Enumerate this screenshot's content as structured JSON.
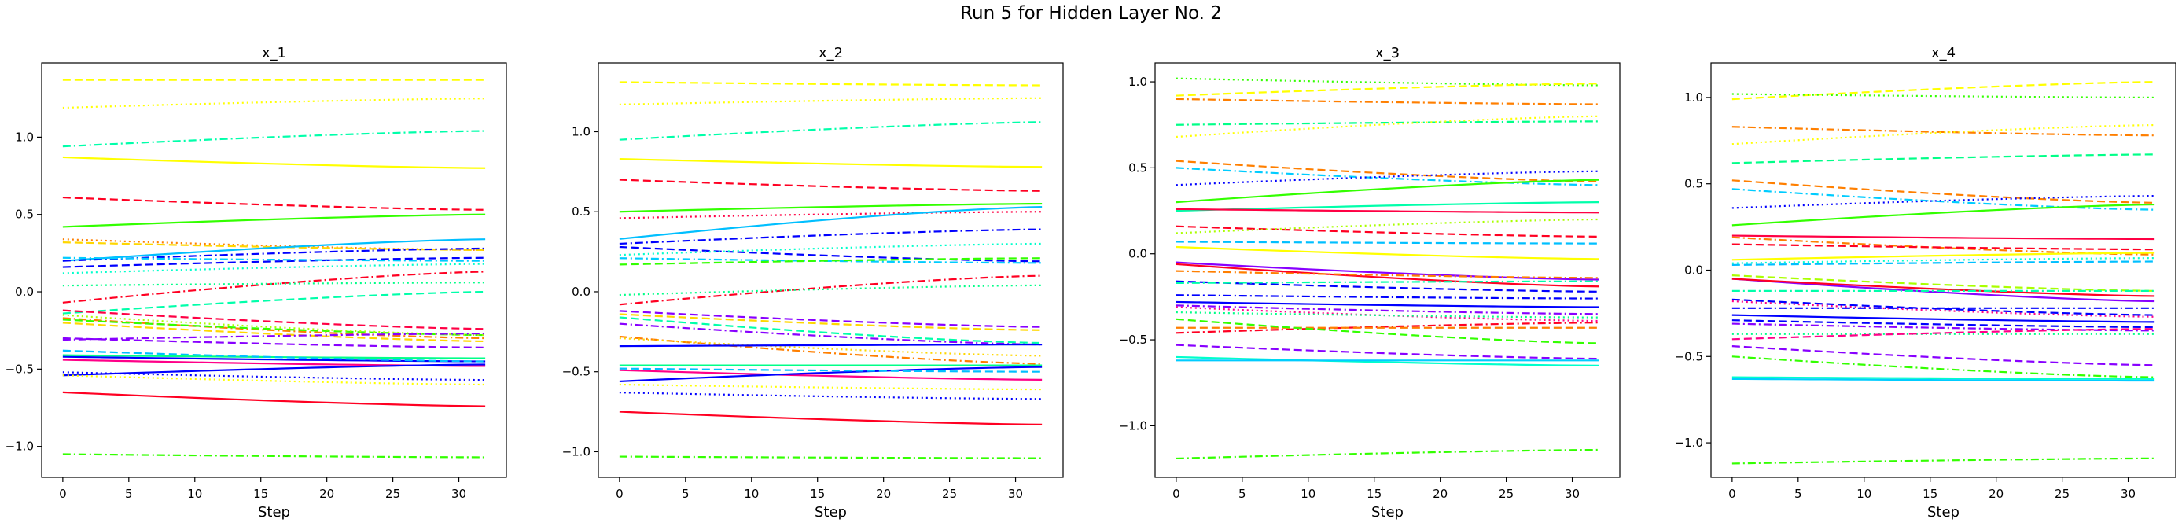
{
  "figure": {
    "title": "Run 5 for Hidden Layer No. 2"
  },
  "chart_data": [
    {
      "type": "line",
      "title": "x_1",
      "xlabel": "Step",
      "ylabel": "",
      "xlim": [
        -1.6,
        33.6
      ],
      "ylim": [
        -1.2,
        1.48
      ],
      "xticks": [
        0,
        5,
        10,
        15,
        20,
        25,
        30
      ],
      "yticks": [
        -1.0,
        -0.5,
        0.0,
        0.5,
        1.0
      ],
      "series": [
        {
          "color": "#ffff00",
          "style": "dashed",
          "start": 1.37,
          "end": 1.37
        },
        {
          "color": "#ffff00",
          "style": "dotted",
          "start": 1.19,
          "end": 1.25
        },
        {
          "color": "#00ffaa",
          "style": "dashdot",
          "start": 0.94,
          "end": 1.04
        },
        {
          "color": "#ffff00",
          "style": "solid",
          "start": 0.87,
          "end": 0.8
        },
        {
          "color": "#ff0022",
          "style": "dashed",
          "start": 0.61,
          "end": 0.53
        },
        {
          "color": "#33ff00",
          "style": "solid",
          "start": 0.42,
          "end": 0.5
        },
        {
          "color": "#ff7f00",
          "style": "dotted",
          "start": 0.34,
          "end": 0.27
        },
        {
          "color": "#ffd700",
          "style": "dashed",
          "start": 0.32,
          "end": 0.27
        },
        {
          "color": "#00bfff",
          "style": "solid",
          "start": 0.2,
          "end": 0.34
        },
        {
          "color": "#0000ff",
          "style": "dashdot",
          "start": 0.2,
          "end": 0.28
        },
        {
          "color": "#0000ff",
          "style": "dashed",
          "start": 0.16,
          "end": 0.22
        },
        {
          "color": "#00ccff",
          "style": "dashdot",
          "start": 0.22,
          "end": 0.2
        },
        {
          "color": "#00ffcc",
          "style": "dotted",
          "start": 0.12,
          "end": 0.18
        },
        {
          "color": "#ff0022",
          "style": "dashdot",
          "start": -0.07,
          "end": 0.13
        },
        {
          "color": "#00ff88",
          "style": "dotted",
          "start": 0.04,
          "end": 0.06
        },
        {
          "color": "#00ffaa",
          "style": "dashed",
          "start": -0.14,
          "end": 0.0
        },
        {
          "color": "#ff0044",
          "style": "dashed",
          "start": -0.12,
          "end": -0.24
        },
        {
          "color": "#ff7f00",
          "style": "dashdot",
          "start": -0.17,
          "end": -0.3
        },
        {
          "color": "#ffd700",
          "style": "dashed",
          "start": -0.2,
          "end": -0.32
        },
        {
          "color": "#33ff00",
          "style": "dashed",
          "start": -0.18,
          "end": -0.28
        },
        {
          "color": "#aaff00",
          "style": "dotted",
          "start": -0.15,
          "end": -0.28
        },
        {
          "color": "#8800ff",
          "style": "dashdot",
          "start": -0.31,
          "end": -0.27
        },
        {
          "color": "#8800ff",
          "style": "dashed",
          "start": -0.3,
          "end": -0.36
        },
        {
          "color": "#0000ff",
          "style": "solid",
          "start": -0.42,
          "end": -0.45
        },
        {
          "color": "#00ff88",
          "style": "solid",
          "start": -0.41,
          "end": -0.43
        },
        {
          "color": "#00bfff",
          "style": "dashed",
          "start": -0.38,
          "end": -0.45
        },
        {
          "color": "#ff0088",
          "style": "solid",
          "start": -0.44,
          "end": -0.48
        },
        {
          "color": "#0000ff",
          "style": "solid",
          "start": -0.54,
          "end": -0.47
        },
        {
          "color": "#0000ff",
          "style": "dotted",
          "start": -0.52,
          "end": -0.57
        },
        {
          "color": "#ffff00",
          "style": "dotted",
          "start": -0.54,
          "end": -0.6
        },
        {
          "color": "#ff0022",
          "style": "solid",
          "start": -0.65,
          "end": -0.74
        },
        {
          "color": "#33ff00",
          "style": "dashdot",
          "start": -1.05,
          "end": -1.07
        }
      ]
    },
    {
      "type": "line",
      "title": "x_2",
      "xlabel": "Step",
      "ylabel": "",
      "xlim": [
        -1.6,
        33.6
      ],
      "ylim": [
        -1.16,
        1.43
      ],
      "xticks": [
        0,
        5,
        10,
        15,
        20,
        25,
        30
      ],
      "yticks": [
        -1.0,
        -0.5,
        0.0,
        0.5,
        1.0
      ],
      "series": [
        {
          "color": "#ffff00",
          "style": "dashed",
          "start": 1.31,
          "end": 1.29
        },
        {
          "color": "#ffff00",
          "style": "dotted",
          "start": 1.17,
          "end": 1.21
        },
        {
          "color": "#00ffaa",
          "style": "dashdot",
          "start": 0.95,
          "end": 1.06
        },
        {
          "color": "#ffff00",
          "style": "solid",
          "start": 0.83,
          "end": 0.78
        },
        {
          "color": "#ff0022",
          "style": "dashed",
          "start": 0.7,
          "end": 0.63
        },
        {
          "color": "#33ff00",
          "style": "solid",
          "start": 0.5,
          "end": 0.55
        },
        {
          "color": "#ff0044",
          "style": "dotted",
          "start": 0.46,
          "end": 0.5
        },
        {
          "color": "#00bfff",
          "style": "solid",
          "start": 0.33,
          "end": 0.53
        },
        {
          "color": "#0000ff",
          "style": "dashdot",
          "start": 0.3,
          "end": 0.39
        },
        {
          "color": "#0000ff",
          "style": "dashed",
          "start": 0.28,
          "end": 0.19
        },
        {
          "color": "#00ffcc",
          "style": "dotted",
          "start": 0.23,
          "end": 0.3
        },
        {
          "color": "#00ccff",
          "style": "dashdot",
          "start": 0.21,
          "end": 0.18
        },
        {
          "color": "#33ff00",
          "style": "dashed",
          "start": 0.17,
          "end": 0.21
        },
        {
          "color": "#ff0022",
          "style": "dashdot",
          "start": -0.08,
          "end": 0.1
        },
        {
          "color": "#00ff88",
          "style": "dotted",
          "start": -0.02,
          "end": 0.04
        },
        {
          "color": "#8800ff",
          "style": "dashed",
          "start": -0.12,
          "end": -0.22
        },
        {
          "color": "#ffd700",
          "style": "dashed",
          "start": -0.14,
          "end": -0.24
        },
        {
          "color": "#00ffaa",
          "style": "dashed",
          "start": -0.16,
          "end": -0.32
        },
        {
          "color": "#8800ff",
          "style": "dashdot",
          "start": -0.2,
          "end": -0.33
        },
        {
          "color": "#ff7f00",
          "style": "dashdot",
          "start": -0.28,
          "end": -0.45
        },
        {
          "color": "#ffd700",
          "style": "dotted",
          "start": -0.29,
          "end": -0.4
        },
        {
          "color": "#0000ff",
          "style": "solid",
          "start": -0.34,
          "end": -0.33
        },
        {
          "color": "#00ff88",
          "style": "solid",
          "start": -0.46,
          "end": -0.46
        },
        {
          "color": "#ff0088",
          "style": "solid",
          "start": -0.49,
          "end": -0.55
        },
        {
          "color": "#0000ff",
          "style": "solid",
          "start": -0.56,
          "end": -0.47
        },
        {
          "color": "#00bfff",
          "style": "dashed",
          "start": -0.48,
          "end": -0.5
        },
        {
          "color": "#ffff00",
          "style": "dotted",
          "start": -0.58,
          "end": -0.61
        },
        {
          "color": "#0000ff",
          "style": "dotted",
          "start": -0.63,
          "end": -0.67
        },
        {
          "color": "#ff0022",
          "style": "solid",
          "start": -0.75,
          "end": -0.83
        },
        {
          "color": "#33ff00",
          "style": "dashdot",
          "start": -1.03,
          "end": -1.04
        }
      ]
    },
    {
      "type": "line",
      "title": "x_3",
      "xlabel": "Step",
      "ylabel": "",
      "xlim": [
        -1.6,
        33.6
      ],
      "ylim": [
        -1.3,
        1.11
      ],
      "xticks": [
        0,
        5,
        10,
        15,
        20,
        25,
        30
      ],
      "yticks": [
        -1.0,
        -0.5,
        0.0,
        0.5,
        1.0
      ],
      "series": [
        {
          "color": "#33ff00",
          "style": "dotted",
          "start": 1.02,
          "end": 0.98
        },
        {
          "color": "#ffff00",
          "style": "dashed",
          "start": 0.92,
          "end": 0.99
        },
        {
          "color": "#ff7f00",
          "style": "dashdot",
          "start": 0.9,
          "end": 0.87
        },
        {
          "color": "#00ff88",
          "style": "dashdot",
          "start": 0.75,
          "end": 0.77
        },
        {
          "color": "#ffff00",
          "style": "dotted",
          "start": 0.68,
          "end": 0.8
        },
        {
          "color": "#ff7f00",
          "style": "dashed",
          "start": 0.54,
          "end": 0.42
        },
        {
          "color": "#00ccff",
          "style": "dashdot",
          "start": 0.5,
          "end": 0.4
        },
        {
          "color": "#0000ff",
          "style": "dotted",
          "start": 0.4,
          "end": 0.48
        },
        {
          "color": "#33ff00",
          "style": "solid",
          "start": 0.3,
          "end": 0.43
        },
        {
          "color": "#00ffaa",
          "style": "solid",
          "start": 0.25,
          "end": 0.3
        },
        {
          "color": "#ff0044",
          "style": "solid",
          "start": 0.26,
          "end": 0.24
        },
        {
          "color": "#ff0022",
          "style": "dashed",
          "start": 0.16,
          "end": 0.1
        },
        {
          "color": "#ffff00",
          "style": "solid",
          "start": 0.04,
          "end": -0.03
        },
        {
          "color": "#00bfff",
          "style": "dashed",
          "start": 0.07,
          "end": 0.06
        },
        {
          "color": "#aaff00",
          "style": "dotted",
          "start": 0.12,
          "end": 0.2
        },
        {
          "color": "#8800ff",
          "style": "solid",
          "start": -0.05,
          "end": -0.15
        },
        {
          "color": "#ff0022",
          "style": "solid",
          "start": -0.06,
          "end": -0.19
        },
        {
          "color": "#ff7f00",
          "style": "dashdot",
          "start": -0.1,
          "end": -0.14
        },
        {
          "color": "#0000ff",
          "style": "dashed",
          "start": -0.16,
          "end": -0.22
        },
        {
          "color": "#00ffaa",
          "style": "dashdot",
          "start": -0.17,
          "end": -0.16
        },
        {
          "color": "#0000ff",
          "style": "dashdot",
          "start": -0.24,
          "end": -0.26
        },
        {
          "color": "#0000ff",
          "style": "solid",
          "start": -0.28,
          "end": -0.31
        },
        {
          "color": "#8800ff",
          "style": "dashdot",
          "start": -0.3,
          "end": -0.35
        },
        {
          "color": "#ff0088",
          "style": "dotted",
          "start": -0.31,
          "end": -0.39
        },
        {
          "color": "#00ff88",
          "style": "dotted",
          "start": -0.34,
          "end": -0.37
        },
        {
          "color": "#ff0022",
          "style": "dashdot",
          "start": -0.46,
          "end": -0.4
        },
        {
          "color": "#ff7f00",
          "style": "dashed",
          "start": -0.43,
          "end": -0.43
        },
        {
          "color": "#33ff00",
          "style": "dashed",
          "start": -0.38,
          "end": -0.52
        },
        {
          "color": "#8800ff",
          "style": "dashed",
          "start": -0.53,
          "end": -0.61
        },
        {
          "color": "#00ffcc",
          "style": "solid",
          "start": -0.6,
          "end": -0.65
        },
        {
          "color": "#00ccff",
          "style": "solid",
          "start": -0.62,
          "end": -0.62
        },
        {
          "color": "#33ff00",
          "style": "dashdot",
          "start": -1.19,
          "end": -1.14
        }
      ]
    },
    {
      "type": "line",
      "title": "x_4",
      "xlabel": "Step",
      "ylabel": "",
      "xlim": [
        -1.6,
        33.6
      ],
      "ylim": [
        -1.2,
        1.2
      ],
      "xticks": [
        0,
        5,
        10,
        15,
        20,
        25,
        30
      ],
      "yticks": [
        -1.0,
        -0.5,
        0.0,
        0.5,
        1.0
      ],
      "series": [
        {
          "color": "#ffff00",
          "style": "dashed",
          "start": 0.99,
          "end": 1.09
        },
        {
          "color": "#33ff00",
          "style": "dotted",
          "start": 1.02,
          "end": 1.0
        },
        {
          "color": "#ff7f00",
          "style": "dashdot",
          "start": 0.83,
          "end": 0.78
        },
        {
          "color": "#ffff00",
          "style": "dotted",
          "start": 0.73,
          "end": 0.84
        },
        {
          "color": "#00ff88",
          "style": "dashed",
          "start": 0.62,
          "end": 0.67
        },
        {
          "color": "#ff7f00",
          "style": "dashed",
          "start": 0.52,
          "end": 0.39
        },
        {
          "color": "#00ccff",
          "style": "dashdot",
          "start": 0.47,
          "end": 0.35
        },
        {
          "color": "#0000ff",
          "style": "dotted",
          "start": 0.36,
          "end": 0.43
        },
        {
          "color": "#33ff00",
          "style": "solid",
          "start": 0.26,
          "end": 0.38
        },
        {
          "color": "#ff0044",
          "style": "solid",
          "start": 0.2,
          "end": 0.18
        },
        {
          "color": "#ff7f00",
          "style": "dashdot",
          "start": 0.19,
          "end": 0.09
        },
        {
          "color": "#ff0022",
          "style": "dashed",
          "start": 0.15,
          "end": 0.12
        },
        {
          "color": "#ffff00",
          "style": "solid",
          "start": 0.06,
          "end": 0.1
        },
        {
          "color": "#00ffcc",
          "style": "dotted",
          "start": 0.04,
          "end": 0.07
        },
        {
          "color": "#00bfff",
          "style": "dashed",
          "start": 0.03,
          "end": 0.05
        },
        {
          "color": "#aaff00",
          "style": "dashed",
          "start": -0.03,
          "end": -0.12
        },
        {
          "color": "#8800ff",
          "style": "solid",
          "start": -0.05,
          "end": -0.18
        },
        {
          "color": "#ff0022",
          "style": "solid",
          "start": -0.05,
          "end": -0.15
        },
        {
          "color": "#00ffaa",
          "style": "dashdot",
          "start": -0.12,
          "end": -0.12
        },
        {
          "color": "#0000ff",
          "style": "dashed",
          "start": -0.17,
          "end": -0.26
        },
        {
          "color": "#ff0088",
          "style": "dotted",
          "start": -0.18,
          "end": -0.27
        },
        {
          "color": "#0000ff",
          "style": "dashdot",
          "start": -0.22,
          "end": -0.22
        },
        {
          "color": "#0000ff",
          "style": "solid",
          "start": -0.26,
          "end": -0.3
        },
        {
          "color": "#0000ff",
          "style": "dashed",
          "start": -0.29,
          "end": -0.33
        },
        {
          "color": "#8800ff",
          "style": "dashdot",
          "start": -0.31,
          "end": -0.35
        },
        {
          "color": "#00ff88",
          "style": "dotted",
          "start": -0.37,
          "end": -0.37
        },
        {
          "color": "#ff0088",
          "style": "dashed",
          "start": -0.4,
          "end": -0.34
        },
        {
          "color": "#8800ff",
          "style": "dashed",
          "start": -0.44,
          "end": -0.55
        },
        {
          "color": "#33ff00",
          "style": "dashdot",
          "start": -0.5,
          "end": -0.62
        },
        {
          "color": "#00ffcc",
          "style": "solid",
          "start": -0.62,
          "end": -0.63
        },
        {
          "color": "#00ccff",
          "style": "solid",
          "start": -0.63,
          "end": -0.64
        },
        {
          "color": "#33ff00",
          "style": "dashdot",
          "start": -1.12,
          "end": -1.09
        }
      ]
    }
  ]
}
